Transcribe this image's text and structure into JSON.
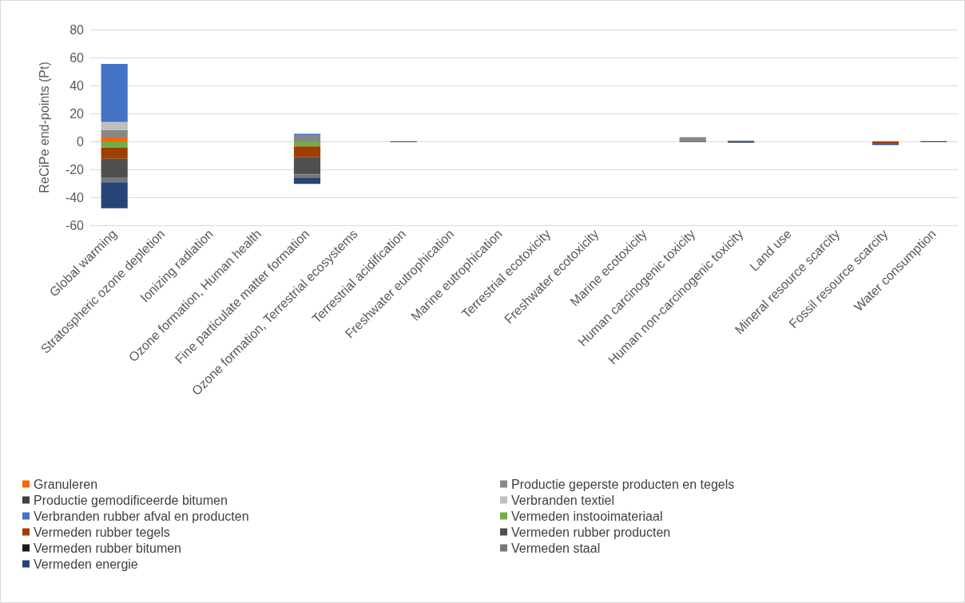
{
  "chart_data": {
    "type": "bar",
    "stacked": true,
    "ylabel": "ReCiPe end-points (Pt)",
    "ylim": [
      -60,
      80
    ],
    "yticks": [
      -60,
      -40,
      -20,
      0,
      20,
      40,
      60,
      80
    ],
    "grid": "y",
    "legend": "bottom",
    "categories": [
      "Global warming",
      "Stratospheric ozone depletion",
      "Ionizing radiation",
      "Ozone formation, Human health",
      "Fine particulate matter formation",
      "Ozone formation, Terrestrial ecosystems",
      "Terrestrial acidification",
      "Freshwater eutrophication",
      "Marine eutrophication",
      "Terrestrial ecotoxicity",
      "Freshwater ecotoxicity",
      "Marine ecotoxicity",
      "Human carcinogenic toxicity",
      "Human non-carcinogenic toxicity",
      "Land use",
      "Mineral resource scarcity",
      "Fossil resource scarcity",
      "Water consumption"
    ],
    "series": [
      {
        "name": "Granuleren",
        "color": "#ff6600",
        "values": [
          2.9,
          null,
          null,
          null,
          null,
          null,
          null,
          null,
          null,
          null,
          null,
          null,
          null,
          null,
          null,
          null,
          null,
          null
        ]
      },
      {
        "name": "Productie geperste producten en tegels",
        "color": "#878787",
        "values": [
          5.3,
          null,
          null,
          null,
          4.6,
          null,
          null,
          null,
          null,
          null,
          null,
          null,
          3.0,
          0.6,
          null,
          null,
          null,
          null
        ]
      },
      {
        "name": "Productie gemodificeerde bitumen",
        "color": "#3f3f3f",
        "values": [
          null,
          null,
          null,
          null,
          null,
          null,
          null,
          null,
          null,
          null,
          null,
          null,
          null,
          null,
          null,
          null,
          null,
          null
        ]
      },
      {
        "name": "Verbranden textiel",
        "color": "#bfbfbf",
        "values": [
          5.7,
          null,
          null,
          null,
          null,
          null,
          null,
          null,
          null,
          null,
          null,
          null,
          null,
          null,
          null,
          null,
          null,
          0.5
        ]
      },
      {
        "name": "Verbranden rubber afval en producten",
        "color": "#4472c4",
        "values": [
          41.5,
          null,
          null,
          null,
          0.8,
          null,
          null,
          null,
          null,
          null,
          null,
          null,
          null,
          null,
          null,
          null,
          null,
          null
        ]
      },
      {
        "name": "Vermeden instooimateriaal",
        "color": "#70ad47",
        "values": [
          -4.4,
          null,
          null,
          null,
          -3.5,
          null,
          null,
          null,
          null,
          null,
          null,
          null,
          null,
          null,
          null,
          null,
          null,
          null
        ]
      },
      {
        "name": "Vermeden rubber tegels",
        "color": "#9e3f00",
        "values": [
          -8,
          null,
          null,
          null,
          -7.8,
          null,
          null,
          null,
          null,
          null,
          null,
          null,
          null,
          null,
          null,
          null,
          -1.2,
          null
        ]
      },
      {
        "name": "Vermeden rubber producten",
        "color": "#4f4f4f",
        "values": [
          -13.7,
          null,
          null,
          null,
          -11.8,
          null,
          null,
          null,
          null,
          null,
          null,
          null,
          -0.3,
          -0.8,
          null,
          null,
          -0.3,
          null
        ]
      },
      {
        "name": "Vermeden rubber bitumen",
        "color": "#1a1a1a",
        "values": [
          null,
          null,
          null,
          null,
          -0.4,
          null,
          null,
          null,
          null,
          null,
          null,
          null,
          null,
          null,
          null,
          null,
          null,
          null
        ]
      },
      {
        "name": "Vermeden staal",
        "color": "#767676",
        "values": [
          -3.2,
          null,
          null,
          null,
          -2.8,
          null,
          null,
          null,
          null,
          null,
          null,
          null,
          null,
          null,
          null,
          null,
          null,
          null
        ]
      },
      {
        "name": "Vermeden energie",
        "color": "#264478",
        "values": [
          -18.5,
          null,
          null,
          null,
          -4.1,
          null,
          -0.6,
          null,
          null,
          null,
          null,
          null,
          -0.3,
          -0.4,
          null,
          null,
          -1,
          -0.5
        ]
      }
    ]
  }
}
